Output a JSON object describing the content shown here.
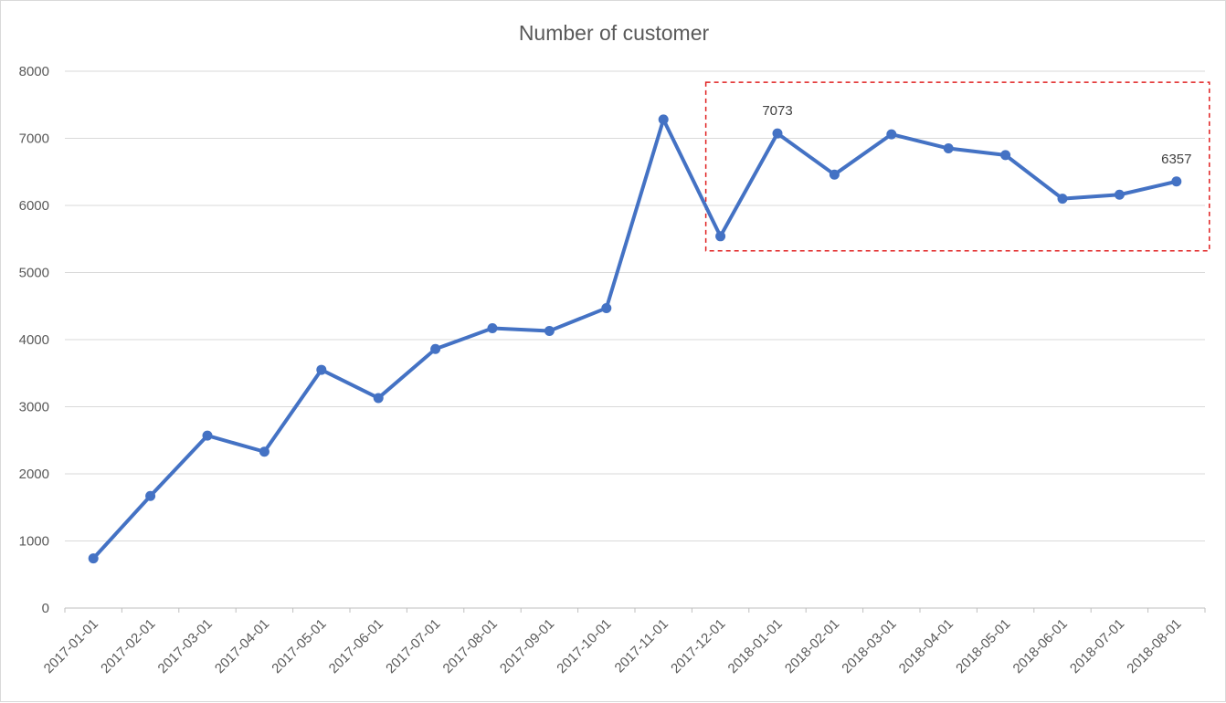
{
  "chart_data": {
    "type": "line",
    "title": "Number of customer",
    "xlabel": "",
    "ylabel": "",
    "ylim": [
      0,
      8000
    ],
    "yticks": [
      "0",
      "1000",
      "2000",
      "3000",
      "4000",
      "5000",
      "6000",
      "7000",
      "8000"
    ],
    "grid": true,
    "legend": "none",
    "categories": [
      "2017-01-01",
      "2017-02-01",
      "2017-03-01",
      "2017-04-01",
      "2017-05-01",
      "2017-06-01",
      "2017-07-01",
      "2017-08-01",
      "2017-09-01",
      "2017-10-01",
      "2017-11-01",
      "2017-12-01",
      "2018-01-01",
      "2018-02-01",
      "2018-03-01",
      "2018-04-01",
      "2018-05-01",
      "2018-06-01",
      "2018-07-01",
      "2018-08-01"
    ],
    "series": [
      {
        "color": "#4472c4",
        "values": [
          740,
          1670,
          2570,
          2330,
          3550,
          3130,
          3860,
          4170,
          4130,
          4470,
          7280,
          5540,
          7073,
          6460,
          7060,
          6850,
          6750,
          6100,
          6160,
          6357
        ]
      }
    ],
    "data_labels": [
      {
        "index": 12,
        "text": "7073"
      },
      {
        "index": 19,
        "text": "6357"
      }
    ],
    "highlight": {
      "from_category": "2017-12-01",
      "to_category": "2018-08-01",
      "style": "dashed",
      "color": "#e02020"
    }
  }
}
